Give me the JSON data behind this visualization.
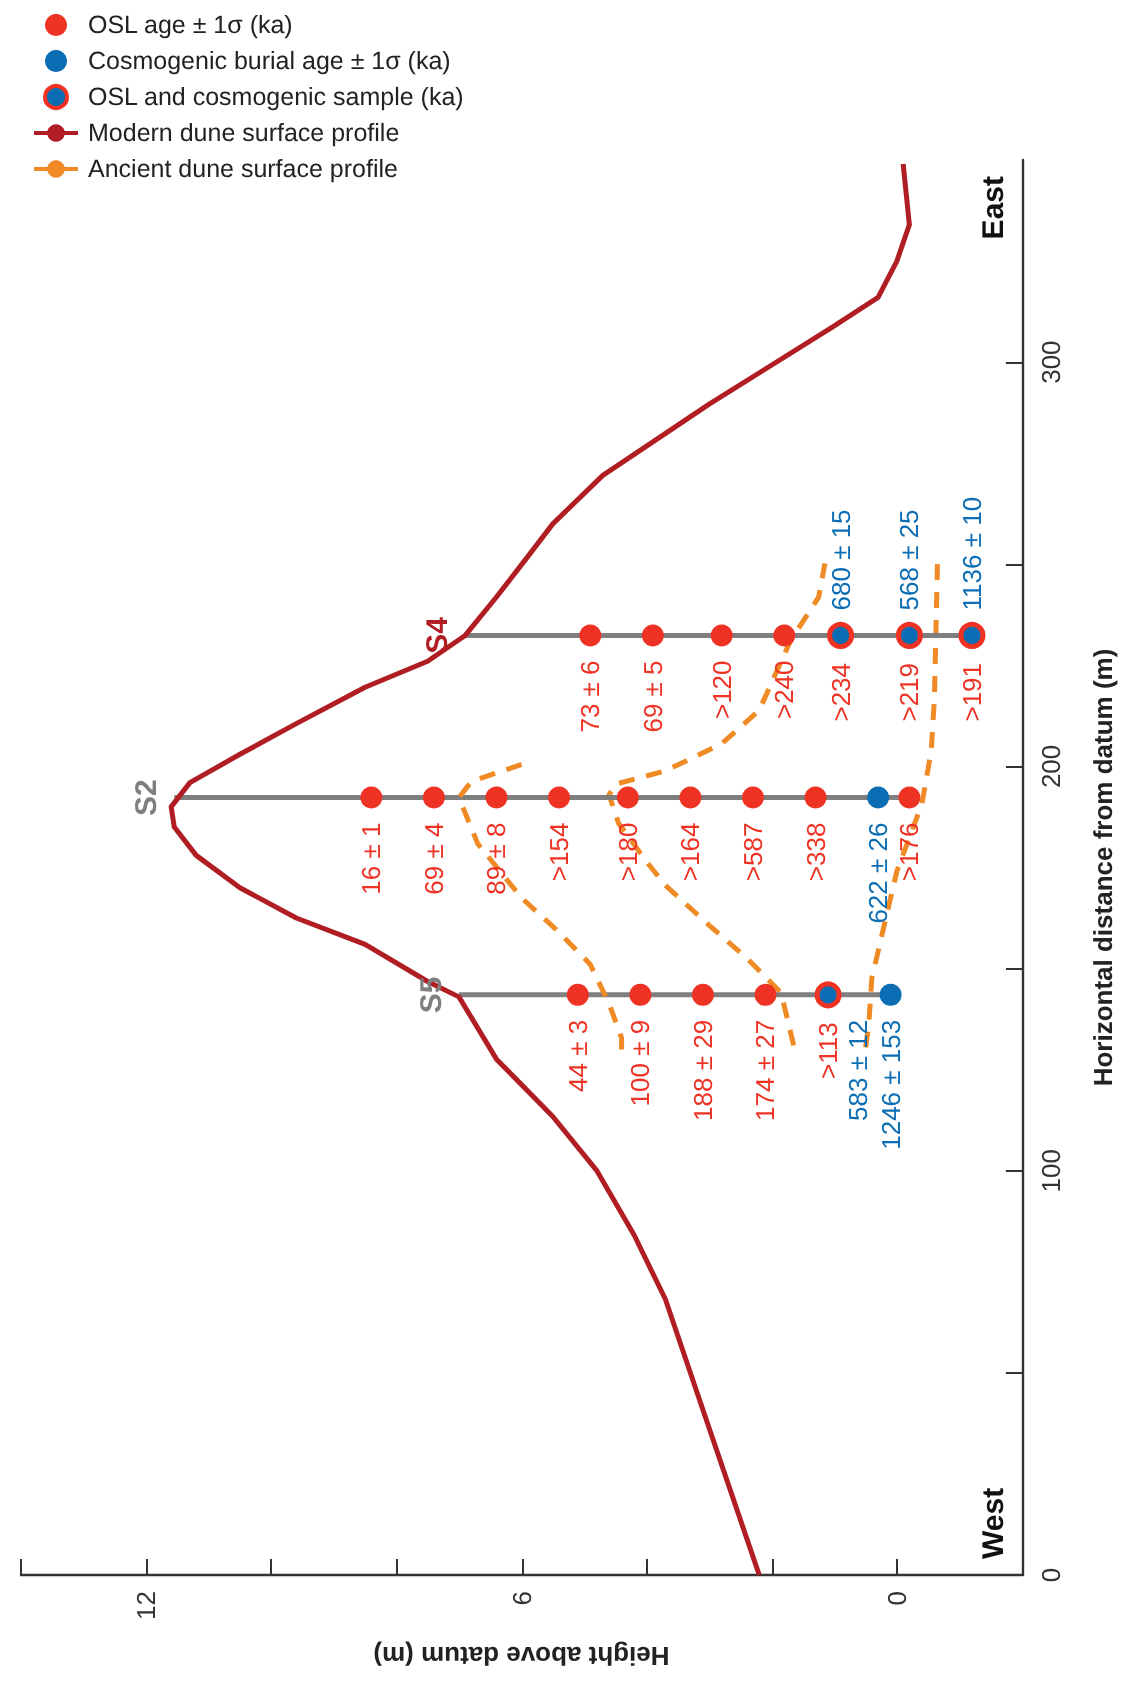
{
  "chart_data": {
    "type": "scatter",
    "xlabel": "Height above datum (m)",
    "ylabel": "Horizontal distance from datum (m)",
    "xlim": [
      14,
      -2
    ],
    "xticks": [
      {
        "value": 14,
        "label": null
      },
      12,
      {
        "value": 10,
        "label": null
      },
      {
        "value": 8,
        "label": null
      },
      6,
      {
        "value": 4,
        "label": null
      },
      {
        "value": 2,
        "label": null
      },
      0
    ],
    "ylim": [
      0,
      350
    ],
    "yticks": [
      0,
      {
        "value": 50,
        "label": null
      },
      100,
      {
        "value": 150,
        "label": null
      },
      200,
      {
        "value": 250,
        "label": null
      },
      300
    ],
    "grid": false,
    "legend": "top left",
    "series": [
      {
        "name": "OSL age ± 1σ (ka)",
        "marker": "circle",
        "color": "#ee3224",
        "x": [
          5.1,
          4.1,
          3.1,
          2.1,
          8.4,
          7.4,
          6.4,
          5.4,
          4.3,
          3.3,
          2.3,
          1.3,
          -0.2,
          4.9,
          3.9,
          2.8,
          1.8
        ],
        "values": [
          143.5,
          143.5,
          143.5,
          143.5,
          192.3,
          192.3,
          192.3,
          192.3,
          192.3,
          192.3,
          192.3,
          192.3,
          192.3,
          232.4,
          232.4,
          232.4,
          232.4
        ],
        "value_labels": [
          "44 ± 3",
          "100 ± 9",
          "188 ± 29",
          "174 ± 27",
          "16 ± 1",
          "69 ± 4",
          "89 ± 8",
          ">154",
          ">180",
          ">164",
          ">587",
          ">338",
          ">176",
          "73 ± 6",
          "69 ± 5",
          ">120",
          ">240"
        ]
      },
      {
        "name": "Cosmogenic burial age ± 1σ (ka)",
        "marker": "circle",
        "color": "#0b6db3",
        "x": [
          0.1,
          0.3
        ],
        "values": [
          143.5,
          192.3
        ],
        "value_labels": [
          "1246 ± 153",
          "622 ± 26"
        ]
      },
      {
        "name": "OSL and cosmogenic sample (ka)",
        "marker": "circle",
        "color": "#0b6db3",
        "x": [
          1.1,
          0.9,
          -0.2,
          -1.2
        ],
        "values": [
          143.5,
          232.4,
          232.4,
          232.4
        ],
        "value_labels": [
          ">113",
          ">234",
          ">219",
          ">191"
        ]
      },
      {
        "name": "Modern dune surface profile",
        "type": "line",
        "marker": "none",
        "line_style": "solid",
        "color": "#b01e24",
        "x": [
          2.2,
          3.0,
          3.7,
          4.2,
          4.8,
          5.5,
          6.4,
          7.0,
          7.5,
          8.5,
          9.6,
          10.5,
          11.2,
          11.55,
          11.6,
          11.3,
          10.5,
          9.6,
          8.5,
          7.5,
          6.9,
          6.4,
          5.9,
          5.5,
          4.7,
          3.0,
          1.0,
          0.3,
          0.0,
          -0.2,
          -0.1
        ],
        "values": [
          0,
          36.3,
          68.2,
          84.1,
          100.1,
          113.4,
          127.6,
          143,
          146.8,
          156,
          162.5,
          170,
          178,
          185,
          190,
          196,
          203,
          210.6,
          219.6,
          226,
          232.4,
          241.9,
          251.9,
          260,
          272,
          289.6,
          309,
          316,
          325,
          334,
          349
        ]
      },
      {
        "name": "Ancient dune surface profile",
        "type": "line",
        "marker": "none",
        "line_style": "dashed",
        "color": "#f08a24",
        "x": [
          4.4,
          4.4,
          4.6,
          4.9,
          5.4,
          6.0,
          6.7,
          7.0,
          6.8,
          5.9
        ],
        "values": [
          130,
          132.8,
          141.3,
          151,
          159,
          167.5,
          180.9,
          192.3,
          196.3,
          201
        ]
      },
      {
        "type": "line",
        "marker": "none",
        "line_style": "dashed",
        "color": "#f08a24",
        "x": [
          1.65,
          1.85,
          2.4,
          3.0,
          3.7,
          4.0,
          4.45,
          4.6,
          4.5,
          3.7,
          2.8,
          2.2,
          1.7,
          1.25,
          1.15
        ],
        "values": [
          131,
          144,
          152.6,
          160.7,
          170.6,
          176.4,
          186,
          193,
          195.6,
          198.9,
          205.6,
          213.9,
          231.1,
          241.9,
          250.2
        ]
      },
      {
        "type": "line",
        "marker": "none",
        "line_style": "dashed",
        "color": "#f08a24",
        "x": [
          0.5,
          0.45,
          0.4,
          0.2,
          0.0,
          -0.4,
          -0.55,
          -0.6,
          -0.65
        ],
        "values": [
          130.5,
          136,
          147.6,
          160.9,
          174.1,
          190.7,
          203.9,
          216.8,
          251
        ]
      },
      {
        "type": "line",
        "marker": "none",
        "line_style": "solid",
        "color": "#7f7f7f",
        "x": [
          0.1,
          7.0
        ],
        "values": [
          143.5,
          143.5
        ]
      },
      {
        "type": "line",
        "marker": "none",
        "line_style": "solid",
        "color": "#7f7f7f",
        "x": [
          -0.2,
          11.55
        ],
        "values": [
          192.3,
          192.3
        ]
      },
      {
        "type": "line",
        "marker": "none",
        "line_style": "solid",
        "color": "#7f7f7f",
        "x": [
          -1.2,
          6.9
        ],
        "values": [
          232.4,
          232.4
        ]
      }
    ],
    "annotations": [
      "West",
      "East",
      {
        "text": "583 ± 12",
        "x": 1.1,
        "y": 143.5
      },
      {
        "text": "680 ± 15",
        "x": 0.9,
        "y": 232.4
      },
      {
        "text": "568 ± 25",
        "x": -0.2,
        "y": 232.4
      },
      {
        "text": "1136 ± 10",
        "x": -1.2,
        "y": 232.4
      },
      {
        "text": "S5",
        "x": 7.0,
        "y": 143.5
      },
      {
        "text": "S2",
        "x": 11.55,
        "y": 192.3
      },
      {
        "text": "S4",
        "x": 6.9,
        "y": 232.4
      }
    ]
  }
}
